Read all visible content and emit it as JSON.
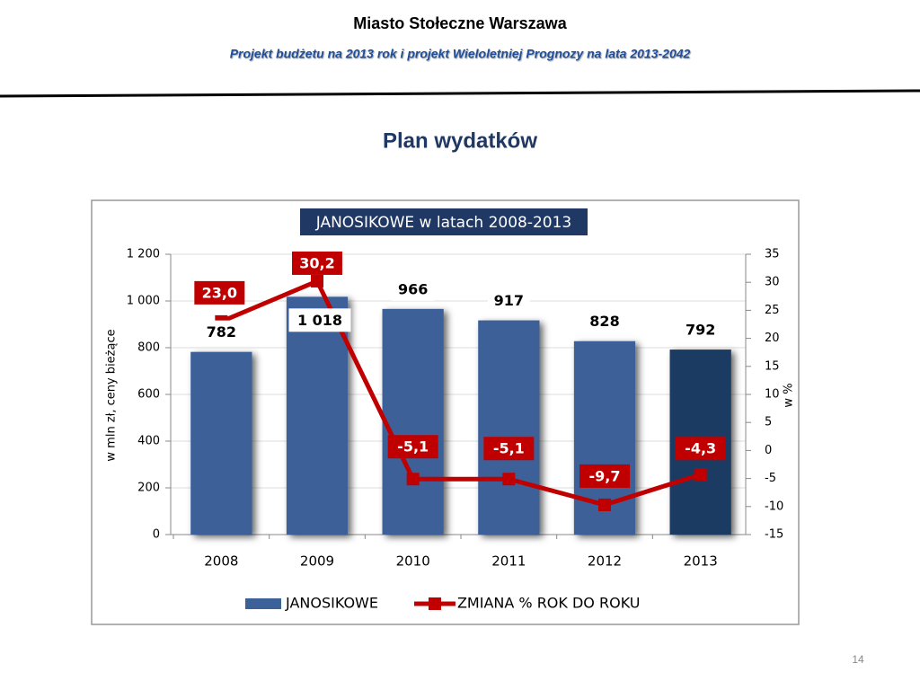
{
  "header": {
    "title": "Miasto Stołeczne Warszawa",
    "subtitle": "Projekt budżetu na 2013 rok i projekt Wieloletniej Prognozy na lata 2013-2042",
    "heading": "Plan wydatków"
  },
  "page_number": 14,
  "chart_data": {
    "type": "combo",
    "title": "JANOSIKOWE w latach 2008-2013",
    "y_label": "w mln zł, ceny bieżące",
    "y2_label": "w %",
    "categories": [
      "2008",
      "2009",
      "2010",
      "2011",
      "2012",
      "2013"
    ],
    "series": [
      {
        "name": "JANOSIKOWE",
        "type": "bar",
        "color": "#3c6098",
        "bar_colors": [
          "#3c6098",
          "#3c6098",
          "#3c6098",
          "#3c6098",
          "#3c6098",
          "#1f3a64"
        ],
        "values": [
          782,
          1018,
          966,
          917,
          828,
          792
        ],
        "value_labels": [
          "782",
          "1 018",
          "966",
          "917",
          "828",
          "792"
        ]
      },
      {
        "name": "ZMIANA % ROK DO ROKU",
        "type": "line",
        "axis": "y2",
        "color": "#c00000",
        "values": [
          23.0,
          30.2,
          -5.1,
          -5.1,
          -9.7,
          -4.3
        ],
        "value_labels": [
          "23,0",
          "30,2",
          "-5,1",
          "-5,1",
          "-9,7",
          "-4,3"
        ]
      }
    ],
    "ylim": [
      0,
      1200
    ],
    "yticks": [
      0,
      200,
      400,
      600,
      800,
      {
        "value": 1000,
        "label": "1 000"
      },
      {
        "value": 1200,
        "label": "1 200"
      }
    ],
    "y2lim": [
      -15,
      35
    ],
    "y2ticks": [
      -15,
      -10,
      -5,
      0,
      5,
      10,
      15,
      20,
      25,
      30,
      35
    ],
    "grid": true,
    "legend": "bottom"
  }
}
